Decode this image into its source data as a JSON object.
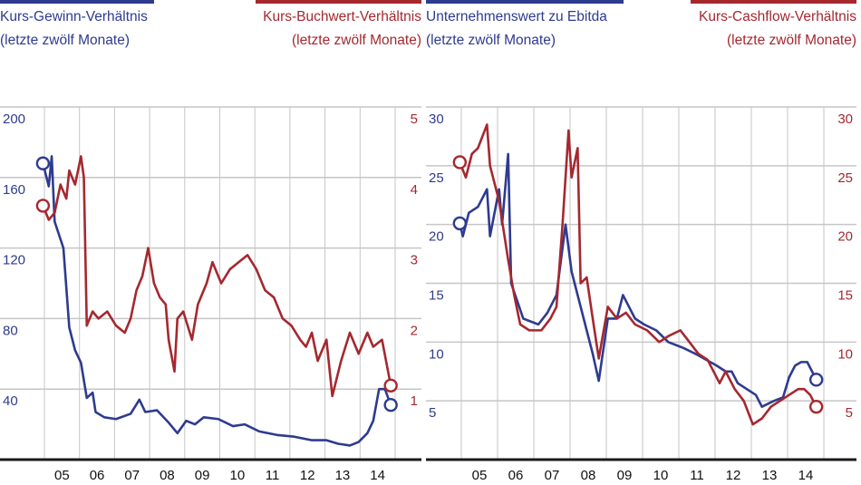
{
  "colors": {
    "blue": "#2e3b8f",
    "red": "#a5282f",
    "grid": "#c6c6c6",
    "axis": "#1a1a1a"
  },
  "chart_data": [
    {
      "type": "line",
      "x_tick_labels": [
        "05",
        "06",
        "07",
        "08",
        "09",
        "10",
        "11",
        "12",
        "13",
        "14"
      ],
      "xlim": [
        "2005-01",
        "2015-12"
      ],
      "grid": true,
      "left_axis": {
        "ylim": [
          0,
          200
        ],
        "ticks": [
          40,
          80,
          120,
          160,
          200
        ]
      },
      "right_axis": {
        "ylim": [
          0,
          5
        ],
        "ticks": [
          1,
          2,
          3,
          4,
          5
        ]
      },
      "series": [
        {
          "name": "Kurs-Gewinn-Verhältnis",
          "name_line2": "(letzte zwölf Monate)",
          "axis": "left",
          "color": "#2e3b8f",
          "points": [
            [
              "2004-12",
              168
            ],
            [
              "2005-02",
              155
            ],
            [
              "2005-03",
              172
            ],
            [
              "2005-04",
              135
            ],
            [
              "2005-06",
              125
            ],
            [
              "2005-07",
              120
            ],
            [
              "2005-09",
              75
            ],
            [
              "2005-11",
              62
            ],
            [
              "2006-01",
              55
            ],
            [
              "2006-02",
              45
            ],
            [
              "2006-03",
              35
            ],
            [
              "2006-05",
              38
            ],
            [
              "2006-06",
              27
            ],
            [
              "2006-09",
              24
            ],
            [
              "2007-01",
              23
            ],
            [
              "2007-06",
              26
            ],
            [
              "2007-09",
              34
            ],
            [
              "2007-11",
              27
            ],
            [
              "2008-03",
              28
            ],
            [
              "2008-07",
              21
            ],
            [
              "2008-10",
              15
            ],
            [
              "2009-01",
              22
            ],
            [
              "2009-04",
              20
            ],
            [
              "2009-07",
              24
            ],
            [
              "2009-12",
              23
            ],
            [
              "2010-05",
              19
            ],
            [
              "2010-09",
              20
            ],
            [
              "2011-02",
              16
            ],
            [
              "2011-08",
              14
            ],
            [
              "2012-02",
              13
            ],
            [
              "2012-08",
              11
            ],
            [
              "2013-01",
              11
            ],
            [
              "2013-05",
              9
            ],
            [
              "2013-09",
              8
            ],
            [
              "2013-12",
              10
            ],
            [
              "2014-03",
              15
            ],
            [
              "2014-05",
              22
            ],
            [
              "2014-07",
              40
            ],
            [
              "2014-09",
              40
            ],
            [
              "2014-11",
              31
            ]
          ]
        },
        {
          "name": "Kurs-Buchwert-Verhältnis",
          "name_line2": "(letzte zwölf Monate)",
          "axis": "right",
          "color": "#a5282f",
          "points": [
            [
              "2004-12",
              3.6
            ],
            [
              "2005-02",
              3.4
            ],
            [
              "2005-04",
              3.5
            ],
            [
              "2005-06",
              3.9
            ],
            [
              "2005-08",
              3.7
            ],
            [
              "2005-09",
              4.1
            ],
            [
              "2005-11",
              3.9
            ],
            [
              "2006-01",
              4.3
            ],
            [
              "2006-02",
              4.0
            ],
            [
              "2006-03",
              1.9
            ],
            [
              "2006-05",
              2.1
            ],
            [
              "2006-07",
              2.0
            ],
            [
              "2006-10",
              2.1
            ],
            [
              "2007-01",
              1.9
            ],
            [
              "2007-04",
              1.8
            ],
            [
              "2007-06",
              2.0
            ],
            [
              "2007-08",
              2.4
            ],
            [
              "2007-10",
              2.6
            ],
            [
              "2007-12",
              3.0
            ],
            [
              "2008-02",
              2.5
            ],
            [
              "2008-04",
              2.3
            ],
            [
              "2008-06",
              2.2
            ],
            [
              "2008-07",
              1.7
            ],
            [
              "2008-09",
              1.25
            ],
            [
              "2008-10",
              2.0
            ],
            [
              "2008-12",
              2.1
            ],
            [
              "2009-03",
              1.7
            ],
            [
              "2009-05",
              2.2
            ],
            [
              "2009-08",
              2.5
            ],
            [
              "2009-10",
              2.8
            ],
            [
              "2010-01",
              2.5
            ],
            [
              "2010-04",
              2.7
            ],
            [
              "2010-07",
              2.8
            ],
            [
              "2010-10",
              2.9
            ],
            [
              "2011-01",
              2.7
            ],
            [
              "2011-04",
              2.4
            ],
            [
              "2011-07",
              2.3
            ],
            [
              "2011-10",
              2.0
            ],
            [
              "2012-01",
              1.9
            ],
            [
              "2012-04",
              1.7
            ],
            [
              "2012-06",
              1.6
            ],
            [
              "2012-08",
              1.8
            ],
            [
              "2012-10",
              1.4
            ],
            [
              "2013-01",
              1.7
            ],
            [
              "2013-03",
              0.9
            ],
            [
              "2013-06",
              1.4
            ],
            [
              "2013-09",
              1.8
            ],
            [
              "2013-12",
              1.5
            ],
            [
              "2014-03",
              1.8
            ],
            [
              "2014-05",
              1.6
            ],
            [
              "2014-08",
              1.7
            ],
            [
              "2014-11",
              1.05
            ]
          ]
        }
      ]
    },
    {
      "type": "line",
      "x_tick_labels": [
        "05",
        "06",
        "07",
        "08",
        "09",
        "10",
        "11",
        "12",
        "13",
        "14"
      ],
      "xlim": [
        "2005-01",
        "2015-12"
      ],
      "grid": true,
      "left_axis": {
        "ylim": [
          0,
          30
        ],
        "ticks": [
          5,
          10,
          15,
          20,
          25,
          30
        ]
      },
      "right_axis": {
        "ylim": [
          0,
          30
        ],
        "ticks": [
          5,
          10,
          15,
          20,
          25,
          30
        ]
      },
      "series": [
        {
          "name": "Unternehmenswert zu Ebitda",
          "name_line2": "(letzte zwölf Monate)",
          "axis": "left",
          "color": "#2e3b8f",
          "points": [
            [
              "2004-12",
              20.1
            ],
            [
              "2005-01",
              19
            ],
            [
              "2005-03",
              21
            ],
            [
              "2005-06",
              21.5
            ],
            [
              "2005-09",
              23
            ],
            [
              "2005-10",
              19
            ],
            [
              "2006-01",
              23
            ],
            [
              "2006-02",
              20
            ],
            [
              "2006-04",
              26
            ],
            [
              "2006-05",
              15
            ],
            [
              "2006-07",
              13.5
            ],
            [
              "2006-09",
              12
            ],
            [
              "2007-02",
              11.5
            ],
            [
              "2007-05",
              12.5
            ],
            [
              "2007-08",
              14
            ],
            [
              "2007-11",
              20
            ],
            [
              "2008-01",
              16
            ],
            [
              "2008-03",
              14
            ],
            [
              "2008-06",
              11
            ],
            [
              "2008-08",
              9
            ],
            [
              "2008-10",
              6.7
            ],
            [
              "2009-01",
              12
            ],
            [
              "2009-04",
              12
            ],
            [
              "2009-06",
              14
            ],
            [
              "2009-10",
              12
            ],
            [
              "2010-01",
              11.5
            ],
            [
              "2010-05",
              11
            ],
            [
              "2010-09",
              10
            ],
            [
              "2011-02",
              9.5
            ],
            [
              "2011-06",
              9
            ],
            [
              "2012-01",
              8
            ],
            [
              "2012-04",
              7.5
            ],
            [
              "2012-06",
              7.5
            ],
            [
              "2012-08",
              6.5
            ],
            [
              "2012-11",
              6
            ],
            [
              "2013-02",
              5.5
            ],
            [
              "2013-04",
              4.5
            ],
            [
              "2013-08",
              5
            ],
            [
              "2013-11",
              5.3
            ],
            [
              "2014-01",
              7
            ],
            [
              "2014-03",
              8
            ],
            [
              "2014-05",
              8.3
            ],
            [
              "2014-07",
              8.3
            ],
            [
              "2014-10",
              6.8
            ]
          ]
        },
        {
          "name": "Kurs-Cashflow-Verhältnis",
          "name_line2": "(letzte zwölf Monate)",
          "axis": "right",
          "color": "#a5282f",
          "points": [
            [
              "2004-12",
              25.3
            ],
            [
              "2005-02",
              24
            ],
            [
              "2005-04",
              26
            ],
            [
              "2005-06",
              26.5
            ],
            [
              "2005-09",
              28.5
            ],
            [
              "2005-10",
              25
            ],
            [
              "2006-01",
              22
            ],
            [
              "2006-04",
              17
            ],
            [
              "2006-06",
              14
            ],
            [
              "2006-08",
              11.5
            ],
            [
              "2006-11",
              11
            ],
            [
              "2007-03",
              11
            ],
            [
              "2007-06",
              12
            ],
            [
              "2007-08",
              13
            ],
            [
              "2007-10",
              20
            ],
            [
              "2007-12",
              28
            ],
            [
              "2008-01",
              24
            ],
            [
              "2008-03",
              26.5
            ],
            [
              "2008-04",
              15
            ],
            [
              "2008-06",
              15.5
            ],
            [
              "2008-08",
              12
            ],
            [
              "2008-10",
              8.6
            ],
            [
              "2009-01",
              13
            ],
            [
              "2009-04",
              12
            ],
            [
              "2009-07",
              12.5
            ],
            [
              "2009-10",
              11.5
            ],
            [
              "2010-02",
              11
            ],
            [
              "2010-06",
              10
            ],
            [
              "2010-09",
              10.5
            ],
            [
              "2011-01",
              11
            ],
            [
              "2011-04",
              10
            ],
            [
              "2011-07",
              9
            ],
            [
              "2011-10",
              8.5
            ],
            [
              "2012-02",
              6.5
            ],
            [
              "2012-04",
              7.5
            ],
            [
              "2012-07",
              6
            ],
            [
              "2012-10",
              5
            ],
            [
              "2013-01",
              3
            ],
            [
              "2013-04",
              3.5
            ],
            [
              "2013-07",
              4.5
            ],
            [
              "2013-10",
              5
            ],
            [
              "2014-01",
              5.5
            ],
            [
              "2014-04",
              6
            ],
            [
              "2014-06",
              6
            ],
            [
              "2014-08",
              5.5
            ],
            [
              "2014-10",
              4.5
            ]
          ]
        }
      ]
    }
  ]
}
